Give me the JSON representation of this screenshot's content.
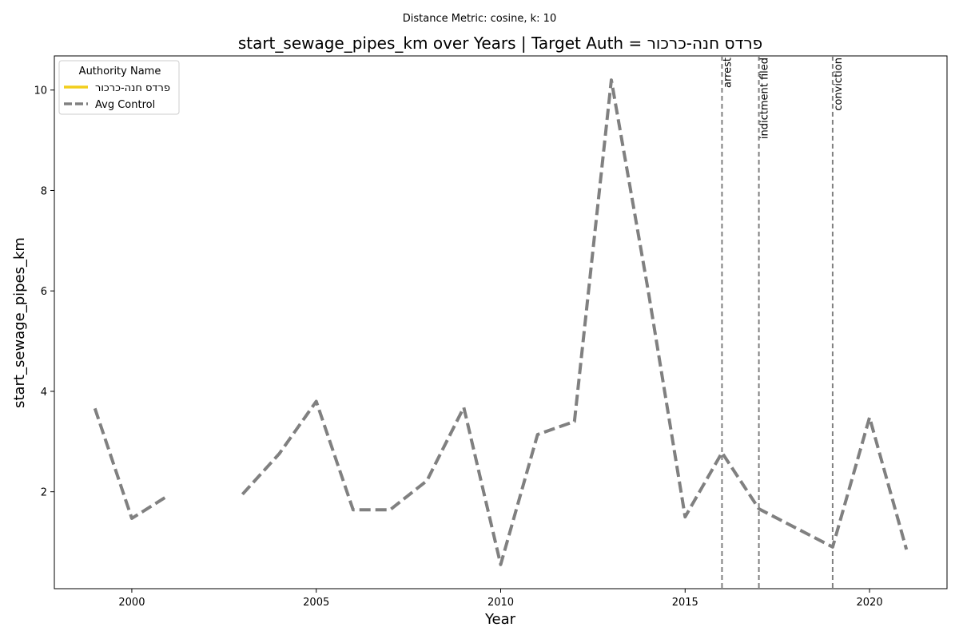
{
  "chart_data": {
    "type": "line",
    "suptitle": "Distance Metric: cosine, k: 10",
    "title": "start_sewage_pipes_km over Years | Target Auth = פרדס חנה-כרכור",
    "xlabel": "Year",
    "ylabel": "start_sewage_pipes_km",
    "xlim": [
      1997.9,
      2022.1
    ],
    "ylim": [
      0.07,
      10.68
    ],
    "xticks": [
      2000,
      2005,
      2010,
      2015,
      2020
    ],
    "yticks": [
      2,
      4,
      6,
      8,
      10
    ],
    "grid": false,
    "legend": {
      "title": "Authority Name",
      "placement": "top-left"
    },
    "series": [
      {
        "name": "פרדס חנה-כרכור",
        "color": "#f2ce1b",
        "style": "solid",
        "points": []
      },
      {
        "name": "Avg Control",
        "color": "#808080",
        "style": "dashed",
        "points": [
          [
            1999,
            3.66
          ],
          [
            2000,
            1.47
          ],
          [
            2001,
            1.93
          ],
          [
            2002,
            null
          ],
          [
            2003,
            1.95
          ],
          [
            2004,
            2.76
          ],
          [
            2005,
            3.8
          ],
          [
            2006,
            1.64
          ],
          [
            2007,
            1.64
          ],
          [
            2008,
            2.22
          ],
          [
            2009,
            3.68
          ],
          [
            2010,
            0.55
          ],
          [
            2011,
            3.14
          ],
          [
            2012,
            3.4
          ],
          [
            2013,
            10.2
          ],
          [
            2014,
            6.0
          ],
          [
            2015,
            1.5
          ],
          [
            2016,
            2.78
          ],
          [
            2017,
            1.66
          ],
          [
            2018,
            1.28
          ],
          [
            2019,
            0.9
          ],
          [
            2020,
            3.48
          ],
          [
            2021,
            0.85
          ]
        ]
      }
    ],
    "events": [
      {
        "x": 2016,
        "label": "arrest"
      },
      {
        "x": 2017,
        "label": "indictment filed"
      },
      {
        "x": 2019,
        "label": "conviction"
      }
    ]
  }
}
